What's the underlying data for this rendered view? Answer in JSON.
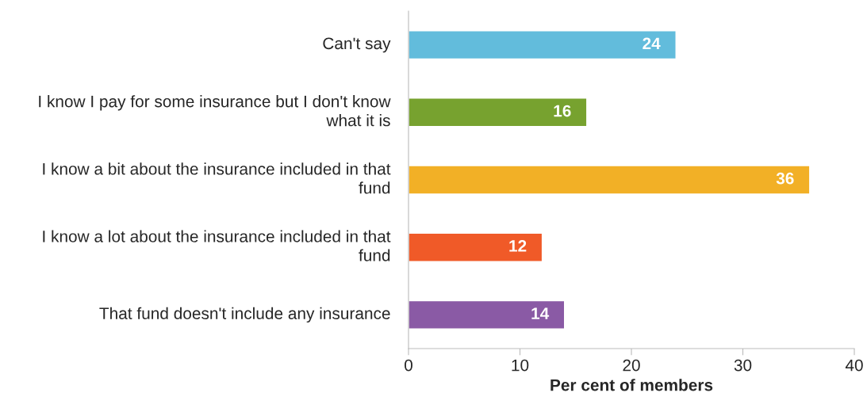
{
  "chart_data": {
    "type": "bar",
    "orientation": "horizontal",
    "xlabel": "Per cent of members",
    "categories": [
      "Can't say",
      "I know I pay for some insurance but I don't know what it is",
      "I know a bit about the insurance included in that fund",
      "I know a lot about the insurance included in that fund",
      "That fund doesn't include any insurance"
    ],
    "values": [
      24,
      16,
      36,
      12,
      14
    ],
    "colors": [
      "#62bcdc",
      "#77a22f",
      "#f2b026",
      "#f05a28",
      "#8a5aa5"
    ],
    "xlim": [
      0,
      40
    ],
    "xticks": [
      0,
      10,
      20,
      30,
      40
    ],
    "grid": false,
    "legend": false,
    "data_labels": true
  }
}
